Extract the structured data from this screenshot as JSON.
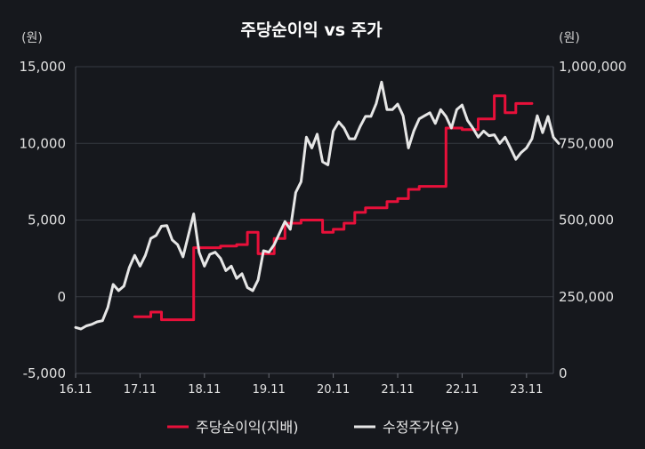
{
  "chart_data": {
    "type": "line",
    "title": "주당순이익 vs 주가",
    "left_axis": {
      "unit": "(원)",
      "ylim": [
        -5000,
        15000
      ],
      "ticks": [
        "15,000",
        "10,000",
        "5,000",
        "0",
        "-5,000"
      ],
      "tick_values": [
        15000,
        10000,
        5000,
        0,
        -5000
      ]
    },
    "right_axis": {
      "unit": "(원)",
      "ylim": [
        0,
        1000000
      ],
      "ticks": [
        "1,000,000",
        "750,000",
        "500,000",
        "250,000",
        "0"
      ],
      "tick_values": [
        1000000,
        750000,
        500000,
        250000,
        0
      ]
    },
    "x_labels": [
      "16.11",
      "17.11",
      "18.11",
      "19.11",
      "20.11",
      "21.11",
      "22.11",
      "23.11"
    ],
    "x_label_positions": [
      0,
      12,
      24,
      36,
      48,
      60,
      72,
      84
    ],
    "x_max": 89,
    "grid": true,
    "legend_position": "bottom",
    "series": [
      {
        "name": "주당순이익(지배)",
        "axis": "left",
        "color": "#e8103a",
        "step": true,
        "points": [
          [
            11,
            -1300
          ],
          [
            14,
            -1000
          ],
          [
            16,
            -1500
          ],
          [
            21,
            -1500
          ],
          [
            22,
            3200
          ],
          [
            24,
            3200
          ],
          [
            27,
            3300
          ],
          [
            30,
            3400
          ],
          [
            32,
            4200
          ],
          [
            34,
            2800
          ],
          [
            37,
            3800
          ],
          [
            39,
            4800
          ],
          [
            42,
            5000
          ],
          [
            46,
            4200
          ],
          [
            48,
            4400
          ],
          [
            50,
            4800
          ],
          [
            52,
            5500
          ],
          [
            54,
            5800
          ],
          [
            56,
            5800
          ],
          [
            58,
            6200
          ],
          [
            60,
            6400
          ],
          [
            62,
            7000
          ],
          [
            64,
            7200
          ],
          [
            66,
            7200
          ],
          [
            69,
            11000
          ],
          [
            72,
            10900
          ],
          [
            75,
            11600
          ],
          [
            78,
            13100
          ],
          [
            80,
            12000
          ],
          [
            82,
            12600
          ],
          [
            84,
            12600
          ],
          [
            85,
            12600
          ]
        ]
      },
      {
        "name": "수정주가(우)",
        "axis": "right",
        "color": "#e6e6e6",
        "step": false,
        "points": [
          [
            0,
            150000
          ],
          [
            1,
            145000
          ],
          [
            2,
            155000
          ],
          [
            3,
            160000
          ],
          [
            4,
            168000
          ],
          [
            5,
            172000
          ],
          [
            6,
            215000
          ],
          [
            7,
            290000
          ],
          [
            8,
            270000
          ],
          [
            9,
            285000
          ],
          [
            10,
            345000
          ],
          [
            11,
            385000
          ],
          [
            12,
            350000
          ],
          [
            13,
            385000
          ],
          [
            14,
            440000
          ],
          [
            15,
            450000
          ],
          [
            16,
            480000
          ],
          [
            17,
            482000
          ],
          [
            18,
            435000
          ],
          [
            19,
            420000
          ],
          [
            20,
            380000
          ],
          [
            21,
            450000
          ],
          [
            22,
            520000
          ],
          [
            23,
            395000
          ],
          [
            24,
            350000
          ],
          [
            25,
            388000
          ],
          [
            26,
            395000
          ],
          [
            27,
            375000
          ],
          [
            28,
            335000
          ],
          [
            29,
            350000
          ],
          [
            30,
            310000
          ],
          [
            31,
            325000
          ],
          [
            32,
            280000
          ],
          [
            33,
            270000
          ],
          [
            34,
            305000
          ],
          [
            35,
            400000
          ],
          [
            36,
            395000
          ],
          [
            37,
            420000
          ],
          [
            38,
            458000
          ],
          [
            39,
            495000
          ],
          [
            40,
            470000
          ],
          [
            41,
            590000
          ],
          [
            42,
            625000
          ],
          [
            43,
            770000
          ],
          [
            44,
            735000
          ],
          [
            45,
            780000
          ],
          [
            46,
            690000
          ],
          [
            47,
            680000
          ],
          [
            48,
            790000
          ],
          [
            49,
            820000
          ],
          [
            50,
            800000
          ],
          [
            51,
            765000
          ],
          [
            52,
            765000
          ],
          [
            53,
            805000
          ],
          [
            54,
            838000
          ],
          [
            55,
            838000
          ],
          [
            56,
            880000
          ],
          [
            57,
            950000
          ],
          [
            58,
            860000
          ],
          [
            59,
            860000
          ],
          [
            60,
            878000
          ],
          [
            61,
            840000
          ],
          [
            62,
            735000
          ],
          [
            63,
            790000
          ],
          [
            64,
            830000
          ],
          [
            65,
            840000
          ],
          [
            66,
            850000
          ],
          [
            67,
            815000
          ],
          [
            68,
            860000
          ],
          [
            69,
            838000
          ],
          [
            70,
            800000
          ],
          [
            71,
            860000
          ],
          [
            72,
            875000
          ],
          [
            73,
            825000
          ],
          [
            74,
            800000
          ],
          [
            75,
            770000
          ],
          [
            76,
            790000
          ],
          [
            77,
            775000
          ],
          [
            78,
            778000
          ],
          [
            79,
            750000
          ],
          [
            80,
            770000
          ],
          [
            81,
            735000
          ],
          [
            82,
            698000
          ],
          [
            83,
            720000
          ],
          [
            84,
            735000
          ],
          [
            85,
            765000
          ],
          [
            86,
            840000
          ],
          [
            87,
            785000
          ],
          [
            88,
            838000
          ],
          [
            89,
            770000
          ],
          [
            90,
            750000
          ]
        ]
      }
    ]
  }
}
